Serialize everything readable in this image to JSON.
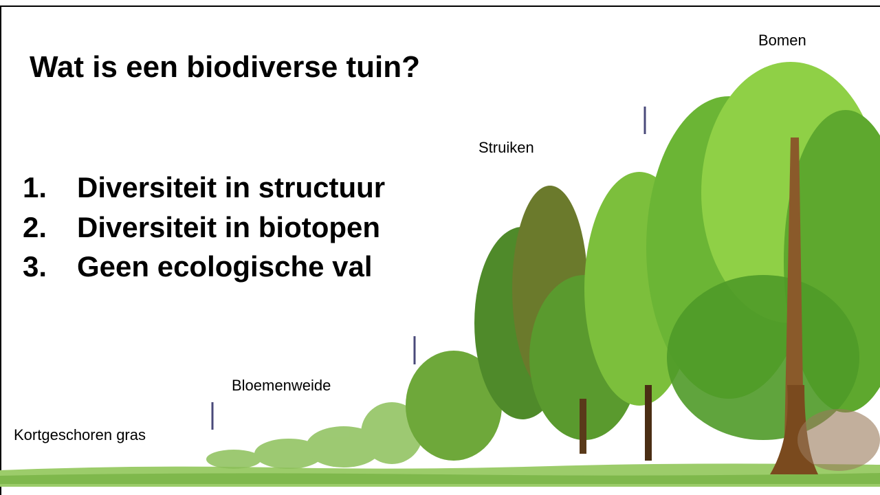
{
  "title": "Wat is een biodiverse tuin?",
  "list": [
    {
      "number": "1.",
      "text": "Diversiteit in structuur"
    },
    {
      "number": "2.",
      "text": "Diversiteit in biotopen"
    },
    {
      "number": "3.",
      "text": "Geen ecologische val"
    }
  ],
  "labels": [
    "Kortgeschoren gras",
    "Bloemenweide",
    "Struiken",
    "Bomen"
  ]
}
